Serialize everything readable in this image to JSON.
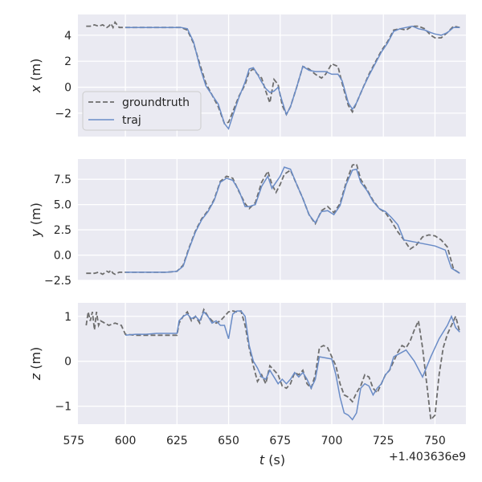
{
  "chart_data": {
    "type": "line",
    "xlabel": "t (s)",
    "x_offset_label": "+1.403636e9",
    "xlim": [
      577,
      765
    ],
    "xticks": [
      575,
      600,
      625,
      650,
      675,
      700,
      725,
      750
    ],
    "xtick_labels": [
      "575",
      "600",
      "625",
      "650",
      "675",
      "700",
      "725",
      "750"
    ],
    "grid": true,
    "legend": {
      "placement": "lower-left of top panel",
      "entries": [
        "groundtruth",
        "traj"
      ]
    },
    "colors": {
      "groundtruth": "#6e6e6e",
      "traj": "#6a8cc7",
      "background": "#eaeaf2"
    },
    "panels": [
      {
        "ylabel": "x (m)",
        "ylim": [
          -3.8,
          5.6
        ],
        "yticks": [
          -2,
          0,
          2,
          4
        ],
        "ytick_labels": [
          "−2",
          "0",
          "2",
          "4"
        ],
        "series": [
          {
            "name": "groundtruth",
            "style": "dashed",
            "x": [
              581,
              583,
              585,
              587,
              589,
              591,
              592,
              593,
              594,
              595,
              597,
              600,
              610,
              620,
              625,
              627,
              630,
              633,
              636,
              639,
              642,
              645,
              648,
              650,
              652,
              655,
              658,
              660,
              662,
              664,
              666,
              668,
              670,
              672,
              674,
              676,
              678,
              680,
              683,
              686,
              689,
              692,
              695,
              697,
              700,
              703,
              705,
              708,
              710,
              712,
              715,
              718,
              721,
              724,
              727,
              730,
              733,
              736,
              738,
              740,
              742,
              745,
              748,
              750,
              753,
              756,
              759,
              762
            ],
            "y": [
              4.7,
              4.7,
              4.8,
              4.7,
              4.8,
              4.6,
              4.7,
              4.9,
              4.6,
              5.0,
              4.6,
              4.6,
              4.6,
              4.6,
              4.6,
              4.6,
              4.4,
              3.4,
              1.8,
              0.3,
              -0.6,
              -1.5,
              -2.8,
              -2.7,
              -1.9,
              -0.7,
              0.2,
              1.2,
              1.4,
              1.0,
              0.7,
              -0.3,
              -1.2,
              0.6,
              0.2,
              -1.4,
              -2.1,
              -1.5,
              0.0,
              1.6,
              1.4,
              1.0,
              0.7,
              1.0,
              1.8,
              1.6,
              0.3,
              -1.4,
              -1.9,
              -1.2,
              -0.1,
              1.0,
              1.9,
              2.8,
              3.5,
              4.4,
              4.5,
              4.4,
              4.6,
              4.7,
              4.7,
              4.5,
              4.0,
              3.8,
              3.8,
              4.2,
              4.7,
              4.6
            ]
          },
          {
            "name": "traj",
            "style": "solid",
            "x": [
              600,
              610,
              620,
              625,
              627,
              630,
              633,
              636,
              639,
              642,
              645,
              648,
              650,
              652,
              655,
              658,
              660,
              662,
              664,
              666,
              668,
              670,
              672,
              674,
              676,
              678,
              680,
              683,
              686,
              689,
              692,
              695,
              697,
              700,
              703,
              705,
              708,
              710,
              712,
              715,
              718,
              721,
              724,
              727,
              730,
              733,
              736,
              739,
              742,
              745,
              748,
              750,
              753,
              756,
              759,
              762
            ],
            "y": [
              4.6,
              4.6,
              4.6,
              4.6,
              4.6,
              4.5,
              3.5,
              1.6,
              0.1,
              -0.6,
              -1.3,
              -2.8,
              -3.2,
              -2.2,
              -0.8,
              0.4,
              1.4,
              1.5,
              1.0,
              0.4,
              -0.1,
              -0.4,
              -0.3,
              0.0,
              -1.1,
              -2.1,
              -1.5,
              0.0,
              1.6,
              1.3,
              1.2,
              1.2,
              1.2,
              1.0,
              1.0,
              0.5,
              -1.2,
              -1.7,
              -1.2,
              -0.1,
              0.9,
              1.8,
              2.7,
              3.4,
              4.3,
              4.5,
              4.6,
              4.7,
              4.5,
              4.4,
              4.2,
              4.1,
              4.0,
              4.2,
              4.6,
              4.6
            ]
          }
        ]
      },
      {
        "ylabel": "y (m)",
        "ylim": [
          -2.5,
          9.5
        ],
        "yticks": [
          -2.5,
          0.0,
          2.5,
          5.0,
          7.5
        ],
        "ytick_labels": [
          "−2.5",
          "0.0",
          "2.5",
          "5.0",
          "7.5"
        ],
        "series": [
          {
            "name": "groundtruth",
            "style": "dashed",
            "x": [
              581,
              583,
              585,
              587,
              589,
              591,
              592,
              593,
              594,
              595,
              597,
              600,
              610,
              620,
              625,
              628,
              631,
              634,
              637,
              640,
              643,
              646,
              649,
              652,
              655,
              658,
              660,
              663,
              666,
              669,
              671,
              673,
              675,
              677,
              680,
              683,
              686,
              689,
              692,
              695,
              698,
              701,
              704,
              707,
              710,
              712,
              714,
              717,
              720,
              723,
              726,
              729,
              732,
              735,
              738,
              741,
              744,
              747,
              750,
              753,
              756,
              759,
              762
            ],
            "y": [
              -1.8,
              -1.8,
              -1.8,
              -1.7,
              -1.9,
              -1.6,
              -1.7,
              -1.5,
              -1.8,
              -1.9,
              -1.7,
              -1.7,
              -1.7,
              -1.7,
              -1.6,
              -1.0,
              0.8,
              2.4,
              3.6,
              4.4,
              5.5,
              7.3,
              7.8,
              7.6,
              6.3,
              5.1,
              4.6,
              5.2,
              7.2,
              8.3,
              7.0,
              6.2,
              7.0,
              8.0,
              8.4,
              7.0,
              5.6,
              4.0,
              3.1,
              4.4,
              4.8,
              4.2,
              5.1,
              7.2,
              8.9,
              9.0,
              7.5,
              6.5,
              5.4,
              4.6,
              4.2,
              3.3,
              2.3,
              1.5,
              0.6,
              1.0,
              1.8,
              2.0,
              1.9,
              1.5,
              0.8,
              -1.4,
              -1.8
            ]
          },
          {
            "name": "traj",
            "style": "solid",
            "x": [
              600,
              610,
              620,
              625,
              628,
              631,
              634,
              637,
              640,
              643,
              646,
              649,
              652,
              655,
              658,
              660,
              663,
              666,
              669,
              671,
              673,
              675,
              677,
              680,
              683,
              686,
              689,
              692,
              695,
              698,
              701,
              704,
              707,
              710,
              712,
              714,
              717,
              720,
              723,
              726,
              729,
              732,
              735,
              740,
              745,
              750,
              755,
              758,
              762
            ],
            "y": [
              -1.7,
              -1.7,
              -1.7,
              -1.6,
              -1.1,
              0.7,
              2.3,
              3.5,
              4.3,
              5.4,
              7.2,
              7.6,
              7.4,
              6.4,
              4.8,
              4.8,
              5.0,
              6.8,
              7.8,
              6.6,
              7.2,
              7.8,
              8.7,
              8.5,
              7.0,
              5.6,
              4.0,
              3.2,
              4.3,
              4.4,
              4.0,
              4.9,
              7.0,
              8.4,
              8.5,
              7.2,
              6.4,
              5.3,
              4.6,
              4.3,
              3.7,
              3.0,
              1.5,
              1.3,
              1.1,
              0.9,
              0.5,
              -1.3,
              -1.8
            ]
          }
        ]
      },
      {
        "ylabel": "z (m)",
        "ylim": [
          -1.4,
          1.3
        ],
        "yticks": [
          -1,
          0,
          1
        ],
        "ytick_labels": [
          "−1",
          "0",
          "1"
        ],
        "series": [
          {
            "name": "groundtruth",
            "style": "dashed",
            "x": [
              581,
              582,
              583,
              584,
              585,
              586,
              587,
              588,
              590,
              592,
              595,
              598,
              600,
              605,
              610,
              615,
              620,
              625,
              626,
              628,
              630,
              632,
              634,
              636,
              638,
              640,
              642,
              644,
              646,
              648,
              650,
              652,
              654,
              656,
              658,
              660,
              662,
              664,
              666,
              668,
              670,
              672,
              674,
              676,
              678,
              680,
              682,
              684,
              686,
              688,
              690,
              692,
              694,
              696,
              698,
              700,
              702,
              704,
              706,
              708,
              710,
              712,
              714,
              716,
              718,
              720,
              722,
              724,
              726,
              728,
              730,
              732,
              734,
              736,
              738,
              740,
              742,
              744,
              746,
              748,
              750,
              752,
              754,
              756,
              758,
              760,
              762
            ],
            "y": [
              0.8,
              1.1,
              0.9,
              1.1,
              0.7,
              1.1,
              0.8,
              0.9,
              0.85,
              0.8,
              0.85,
              0.8,
              0.6,
              0.58,
              0.58,
              0.58,
              0.58,
              0.58,
              0.85,
              1.0,
              1.1,
              0.9,
              1.0,
              0.85,
              1.15,
              1.0,
              0.9,
              0.85,
              0.9,
              1.0,
              1.1,
              1.12,
              1.1,
              1.12,
              0.8,
              0.3,
              -0.1,
              -0.45,
              -0.3,
              -0.5,
              -0.1,
              -0.2,
              -0.3,
              -0.55,
              -0.6,
              -0.5,
              -0.25,
              -0.3,
              -0.2,
              -0.5,
              -0.6,
              -0.3,
              0.3,
              0.35,
              0.3,
              0.1,
              -0.1,
              -0.5,
              -0.75,
              -0.8,
              -0.9,
              -0.7,
              -0.55,
              -0.3,
              -0.35,
              -0.6,
              -0.7,
              -0.5,
              -0.3,
              -0.2,
              0.0,
              0.2,
              0.35,
              0.3,
              0.45,
              0.7,
              0.9,
              0.3,
              -0.5,
              -1.3,
              -1.2,
              -0.3,
              0.3,
              0.6,
              0.8,
              1.0,
              0.65
            ]
          },
          {
            "name": "traj",
            "style": "solid",
            "x": [
              600,
              605,
              610,
              615,
              620,
              625,
              626,
              628,
              630,
              632,
              634,
              636,
              638,
              640,
              642,
              644,
              646,
              648,
              650,
              652,
              654,
              656,
              658,
              660,
              662,
              664,
              666,
              668,
              670,
              672,
              674,
              676,
              678,
              680,
              682,
              684,
              686,
              688,
              690,
              692,
              694,
              700,
              702,
              704,
              706,
              708,
              710,
              712,
              714,
              716,
              718,
              720,
              722,
              724,
              726,
              728,
              730,
              732,
              736,
              740,
              744,
              748,
              752,
              756,
              758,
              760,
              762
            ],
            "y": [
              0.58,
              0.6,
              0.6,
              0.62,
              0.62,
              0.62,
              0.9,
              1.0,
              1.05,
              0.95,
              1.0,
              0.9,
              1.1,
              1.0,
              0.85,
              0.9,
              0.8,
              0.8,
              0.5,
              1.05,
              1.12,
              1.12,
              1.0,
              0.35,
              0.0,
              -0.15,
              -0.35,
              -0.4,
              -0.2,
              -0.35,
              -0.5,
              -0.4,
              -0.5,
              -0.4,
              -0.25,
              -0.35,
              -0.25,
              -0.4,
              -0.6,
              -0.4,
              0.1,
              0.05,
              -0.3,
              -0.8,
              -1.15,
              -1.2,
              -1.3,
              -1.15,
              -0.6,
              -0.5,
              -0.55,
              -0.75,
              -0.6,
              -0.5,
              -0.3,
              -0.2,
              0.1,
              0.15,
              0.25,
              0.0,
              -0.35,
              0.1,
              0.5,
              0.8,
              1.0,
              0.75,
              0.65
            ]
          }
        ]
      }
    ]
  }
}
